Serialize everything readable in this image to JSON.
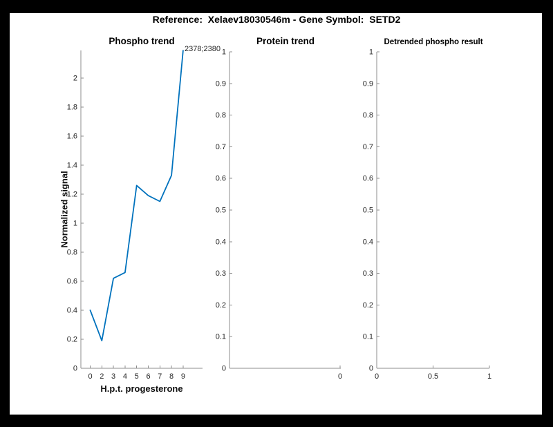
{
  "figure_title": "Reference:  Xelaev18030546m - Gene Symbol:  SETD2",
  "colors": {
    "frame_background": "#000000",
    "canvas_background": "#ffffff",
    "line_color": "#0072BD",
    "axis_color": "#8c8c8c",
    "tick_label_color": "#262626"
  },
  "chart_data": [
    {
      "id": "phospho-trend",
      "type": "line",
      "title": "Phospho trend",
      "xlabel": "H.p.t. progesterone",
      "ylabel": "Normalized signal",
      "x_tick_labels": [
        "0",
        "2",
        "3",
        "4",
        "5",
        "6",
        "7",
        "8",
        "9"
      ],
      "x_values": [
        0,
        2,
        3,
        4,
        5,
        6,
        7,
        8,
        9
      ],
      "values": [
        0.4,
        0.19,
        0.62,
        0.66,
        1.26,
        1.19,
        1.15,
        1.33,
        2.19
      ],
      "y_tick_values": [
        0,
        0.2,
        0.4,
        0.6,
        0.8,
        1,
        1.2,
        1.4,
        1.6,
        1.8,
        2
      ],
      "y_tick_labels": [
        "0",
        "0.2",
        "0.4",
        "0.6",
        "0.8",
        "1",
        "1.2",
        "1.4",
        "1.6",
        "1.8",
        "2"
      ],
      "ylim": [
        0,
        2.19
      ],
      "annotation": "2378;2380",
      "grid": false,
      "legend": null
    },
    {
      "id": "protein-trend",
      "type": "line",
      "title": "Protein trend",
      "xlabel": "",
      "ylabel": "",
      "x_tick_labels": [
        "0"
      ],
      "values": [],
      "y_tick_values": [
        0,
        0.1,
        0.2,
        0.3,
        0.4,
        0.5,
        0.6,
        0.7,
        0.8,
        0.9,
        1
      ],
      "y_tick_labels": [
        "0",
        "0.1",
        "0.2",
        "0.3",
        "0.4",
        "0.5",
        "0.6",
        "0.7",
        "0.8",
        "0.9",
        "1"
      ],
      "ylim": [
        0,
        1
      ],
      "annotation": null,
      "grid": false,
      "legend": null
    },
    {
      "id": "detrended-phospho-result",
      "type": "line",
      "title": "Detrended phospho result",
      "xlabel": "",
      "ylabel": "",
      "x_tick_labels": [
        "0",
        "0.5",
        "1"
      ],
      "values": [],
      "y_tick_values": [
        0,
        0.1,
        0.2,
        0.3,
        0.4,
        0.5,
        0.6,
        0.7,
        0.8,
        0.9,
        1
      ],
      "y_tick_labels": [
        "0",
        "0.1",
        "0.2",
        "0.3",
        "0.4",
        "0.5",
        "0.6",
        "0.7",
        "0.8",
        "0.9",
        "1"
      ],
      "ylim": [
        0,
        1
      ],
      "annotation": null,
      "grid": false,
      "legend": null
    }
  ]
}
